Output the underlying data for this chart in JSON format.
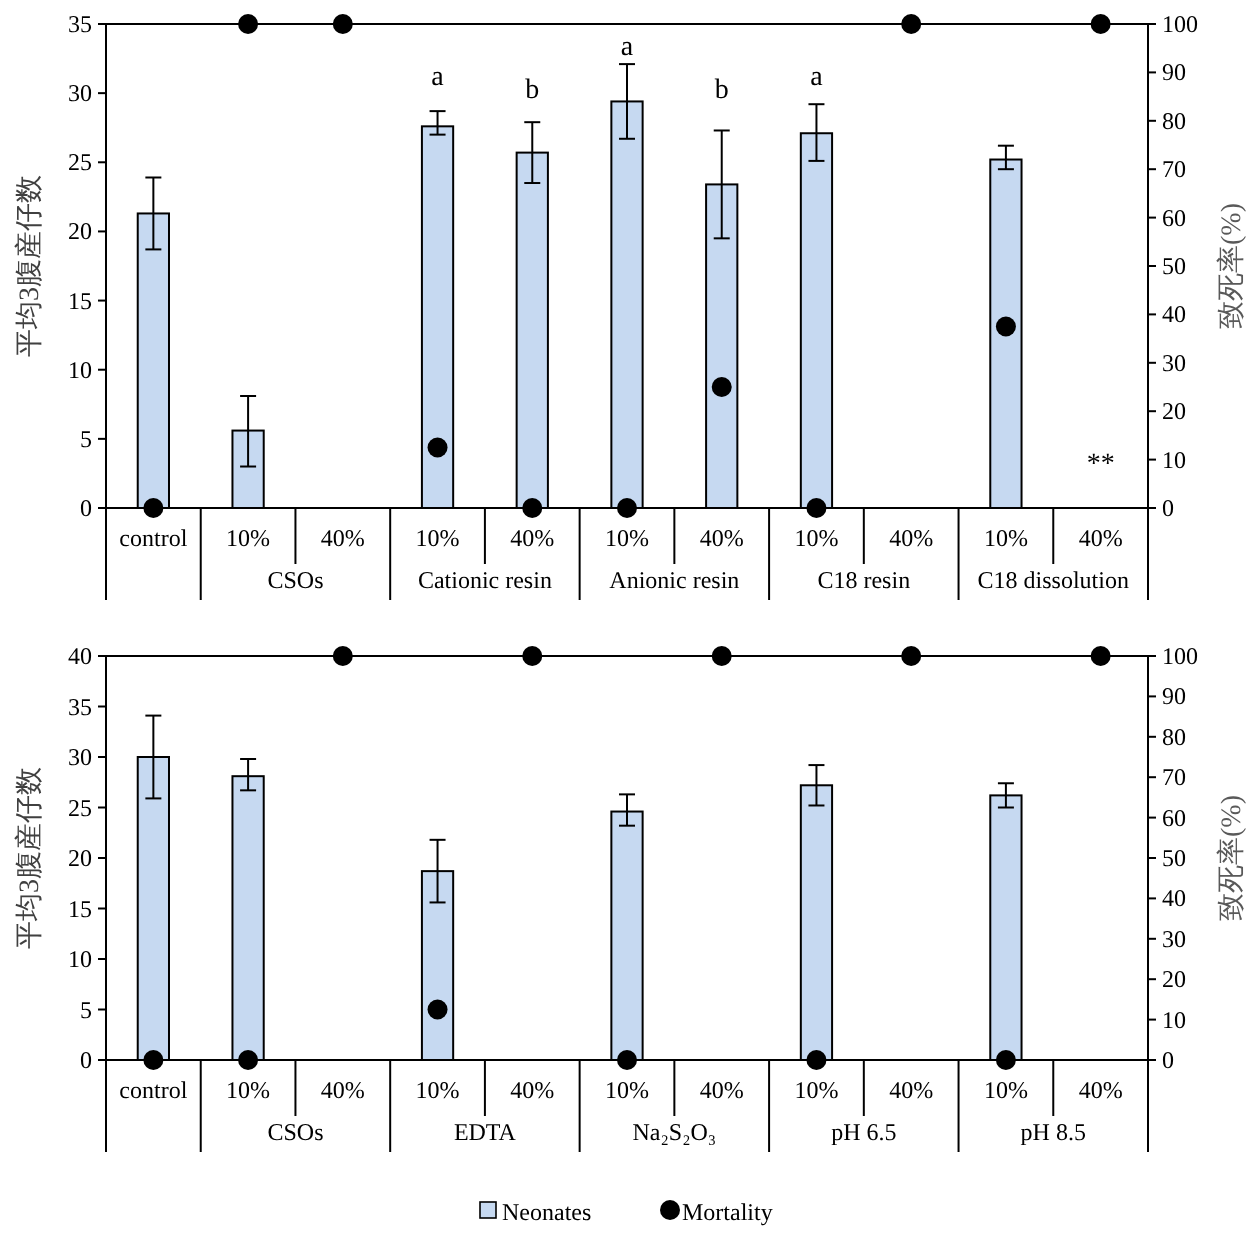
{
  "chart_data": [
    {
      "type": "bar",
      "categories": [
        "control",
        "10%",
        "40%",
        "10%",
        "40%",
        "10%",
        "40%",
        "10%",
        "40%",
        "10%",
        "40%"
      ],
      "series": [
        {
          "type": "bar",
          "color": "#c6d9f1",
          "values": [
            21.3,
            5.6,
            0,
            27.6,
            25.7,
            29.4,
            23.4,
            27.1,
            0,
            25.2,
            0
          ],
          "errors": [
            [
              18.7,
              23.9
            ],
            [
              3.0,
              8.1
            ],
            null,
            [
              27.0,
              28.7
            ],
            [
              23.5,
              27.9
            ],
            [
              26.7,
              32.1
            ],
            [
              19.5,
              27.3
            ],
            [
              25.1,
              29.2
            ],
            null,
            [
              24.5,
              26.2
            ],
            null
          ]
        },
        {
          "type": "scatter",
          "axis": "y2",
          "marker": "circle",
          "color": "#000000",
          "values": [
            0,
            100,
            100,
            12.5,
            0,
            0,
            25,
            0,
            100,
            37.5,
            100
          ]
        }
      ],
      "ylim": [
        0,
        35
      ],
      "yticks": [
        0,
        5,
        10,
        15,
        20,
        25,
        30,
        35
      ],
      "y2lim": [
        0,
        100
      ],
      "y2ticks": [
        0,
        10,
        20,
        30,
        40,
        50,
        60,
        70,
        80,
        90,
        100
      ],
      "ylabel": "平均3腹産仔数",
      "y2label": "致死率(%)",
      "annotations": [
        "CSOs",
        "Cationic resin",
        "Anionic resin",
        "C18 resin",
        "C18 dissolution",
        "a",
        "b",
        "a",
        "b",
        "a",
        "**"
      ],
      "legend": false
    },
    {
      "type": "bar",
      "categories": [
        "control",
        "10%",
        "40%",
        "10%",
        "40%",
        "10%",
        "40%",
        "10%",
        "40%",
        "10%",
        "40%"
      ],
      "series": [
        {
          "type": "bar",
          "name": "Neonates",
          "color": "#c6d9f1",
          "values": [
            30.0,
            28.1,
            0,
            18.7,
            0,
            24.6,
            0,
            27.2,
            0,
            26.2,
            0
          ],
          "errors": [
            [
              25.9,
              34.1
            ],
            [
              26.7,
              29.8
            ],
            null,
            [
              15.6,
              21.8
            ],
            null,
            [
              23.2,
              26.3
            ],
            null,
            [
              25.2,
              29.2
            ],
            null,
            [
              25.0,
              27.4
            ],
            null
          ]
        },
        {
          "type": "scatter",
          "name": "Mortality",
          "axis": "y2",
          "marker": "circle",
          "color": "#000000",
          "values": [
            0,
            0,
            100,
            12.5,
            100,
            0,
            100,
            0,
            100,
            0,
            100
          ]
        }
      ],
      "ylim": [
        0,
        40
      ],
      "yticks": [
        0,
        5,
        10,
        15,
        20,
        25,
        30,
        35,
        40
      ],
      "y2lim": [
        0,
        100
      ],
      "y2ticks": [
        0,
        10,
        20,
        30,
        40,
        50,
        60,
        70,
        80,
        90,
        100
      ],
      "ylabel": "平均3腹産仔数",
      "y2label": "致死率(%)",
      "annotations": [
        "CSOs",
        "EDTA",
        "Na₂S₂O₃",
        "pH 6.5",
        "pH 8.5"
      ],
      "legend": "bottom"
    }
  ]
}
